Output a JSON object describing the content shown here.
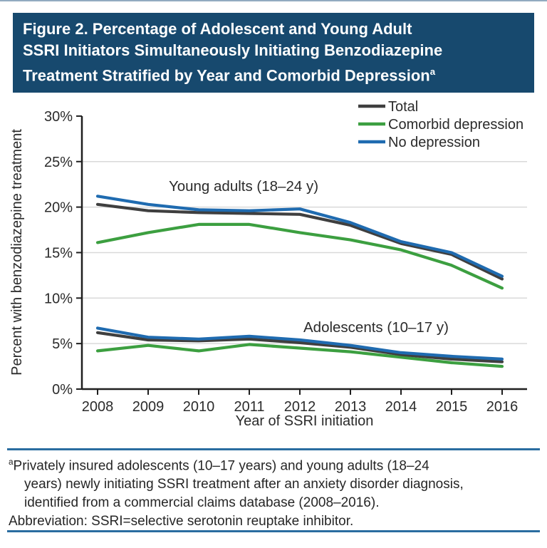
{
  "title": {
    "lines": [
      "Figure 2. Percentage of Adolescent and Young Adult",
      "SSRI Initiators Simultaneously Initiating Benzodiazepine",
      "Treatment Stratified by Year and Comorbid Depression"
    ],
    "sup": "a"
  },
  "colors": {
    "title_bg": "#17496E",
    "title_text": "#FFFFFF",
    "rule": "#2A6DA0",
    "gridline": "#D9D9D9",
    "axis": "#1F1F1F",
    "text": "#2B2B2B",
    "total": "#3F3F3F",
    "comorbid": "#3C9F40",
    "no_depression": "#1F6BB0"
  },
  "legend": [
    {
      "label": "Total",
      "series": "total"
    },
    {
      "label": "Comorbid depression",
      "series": "comorbid"
    },
    {
      "label": "No depression",
      "series": "no_depression"
    }
  ],
  "chart_data": {
    "type": "line",
    "title": "",
    "xlabel": "Year of SSRI initiation",
    "ylabel": "Percent  with benzodiazepine treatment",
    "x": [
      "2008",
      "2009",
      "2010",
      "2011",
      "2012",
      "2013",
      "2014",
      "2015",
      "2016"
    ],
    "ylim": [
      0,
      30
    ],
    "y_ticks": [
      0,
      5,
      10,
      15,
      20,
      25,
      30
    ],
    "y_tick_suffix": "%",
    "grid": "horizontal",
    "legend_position": "top-right",
    "groups": [
      {
        "label": "Young adults (18–24 y)",
        "series": [
          {
            "name": "total",
            "values": [
              20.3,
              19.6,
              19.4,
              19.3,
              19.2,
              18.0,
              16.0,
              14.8,
              12.1
            ]
          },
          {
            "name": "comorbid",
            "values": [
              16.1,
              17.2,
              18.1,
              18.1,
              17.2,
              16.4,
              15.3,
              13.6,
              11.1
            ]
          },
          {
            "name": "no_depression",
            "values": [
              21.2,
              20.3,
              19.7,
              19.6,
              19.8,
              18.3,
              16.2,
              15.0,
              12.4
            ]
          }
        ]
      },
      {
        "label": "Adolescents (10–17 y)",
        "series": [
          {
            "name": "total",
            "values": [
              6.2,
              5.4,
              5.3,
              5.5,
              5.1,
              4.6,
              3.8,
              3.3,
              3.0
            ]
          },
          {
            "name": "comorbid",
            "values": [
              4.2,
              4.8,
              4.2,
              4.9,
              4.5,
              4.1,
              3.5,
              2.9,
              2.5
            ]
          },
          {
            "name": "no_depression",
            "values": [
              6.7,
              5.7,
              5.5,
              5.8,
              5.4,
              4.8,
              4.0,
              3.6,
              3.3
            ]
          }
        ]
      }
    ]
  },
  "footnote": {
    "sup": "a",
    "note_lines": [
      "Privately insured adolescents (10–17 years) and young adults (18–24",
      "years) newly initiating SSRI treatment after an anxiety disorder diagnosis,",
      "identified from a commercial claims database (2008–2016)."
    ],
    "abbreviation": "Abbreviation: SSRI=selective serotonin reuptake inhibitor."
  }
}
